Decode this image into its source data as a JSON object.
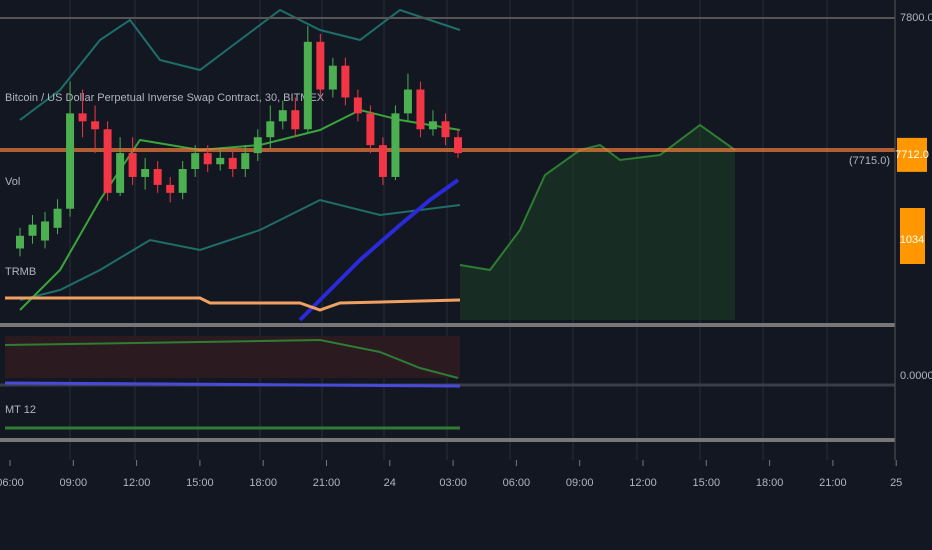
{
  "chart_data": {
    "type": "candlestick",
    "title": "Bitcoin / US Dollar Perpetual Inverse Swap Contract, 30, BITMEX",
    "open": [
      7655,
      7663,
      7660,
      7668,
      7680,
      7740,
      7735,
      7730,
      7690,
      7715,
      7700,
      7705,
      7695,
      7690,
      7705,
      7715,
      7708,
      7712,
      7705,
      7715,
      7725,
      7735,
      7742,
      7730,
      7785,
      7755,
      7770,
      7750,
      7740,
      7720,
      7700,
      7740,
      7755,
      7730,
      7735,
      7725
    ],
    "high": [
      7668,
      7676,
      7678,
      7686,
      7760,
      7755,
      7745,
      7735,
      7725,
      7725,
      7712,
      7710,
      7700,
      7710,
      7720,
      7720,
      7718,
      7716,
      7720,
      7730,
      7745,
      7748,
      7750,
      7795,
      7790,
      7775,
      7775,
      7755,
      7745,
      7725,
      7745,
      7765,
      7760,
      7742,
      7740,
      7730
    ],
    "low": [
      7650,
      7658,
      7655,
      7664,
      7675,
      7725,
      7715,
      7685,
      7688,
      7695,
      7692,
      7690,
      7684,
      7686,
      7700,
      7703,
      7704,
      7700,
      7700,
      7710,
      7718,
      7730,
      7725,
      7728,
      7750,
      7750,
      7745,
      7735,
      7715,
      7695,
      7698,
      7735,
      7725,
      7726,
      7720,
      7712
    ],
    "close": [
      7663,
      7670,
      7672,
      7680,
      7740,
      7735,
      7730,
      7690,
      7715,
      7700,
      7705,
      7695,
      7690,
      7705,
      7715,
      7708,
      7712,
      7705,
      7715,
      7725,
      7735,
      7742,
      7730,
      7785,
      7755,
      7770,
      7750,
      7740,
      7720,
      7700,
      7740,
      7755,
      7730,
      7735,
      7725,
      7715
    ],
    "up_color": "#4caf50",
    "down_color": "#f23645",
    "ylim": [
      7610,
      7800
    ],
    "yticks": [
      {
        "value": 7800,
        "label": "7800.0"
      }
    ],
    "last_price": {
      "value": 7712,
      "label": "7712.0"
    },
    "marker_price": {
      "value": 7715,
      "label": "(7715.0)"
    },
    "volume_label": "1034",
    "time_labels": [
      "06:00",
      "09:00",
      "12:00",
      "15:00",
      "18:00",
      "21:00",
      "24",
      "03:00",
      "06:00",
      "09:00",
      "12:00",
      "15:00",
      "18:00",
      "21:00",
      "25"
    ]
  },
  "panes": {
    "volume": "Vol",
    "indicator": "TRMB",
    "oscillator": "MT 12",
    "oscillator_value": "0.0000"
  }
}
